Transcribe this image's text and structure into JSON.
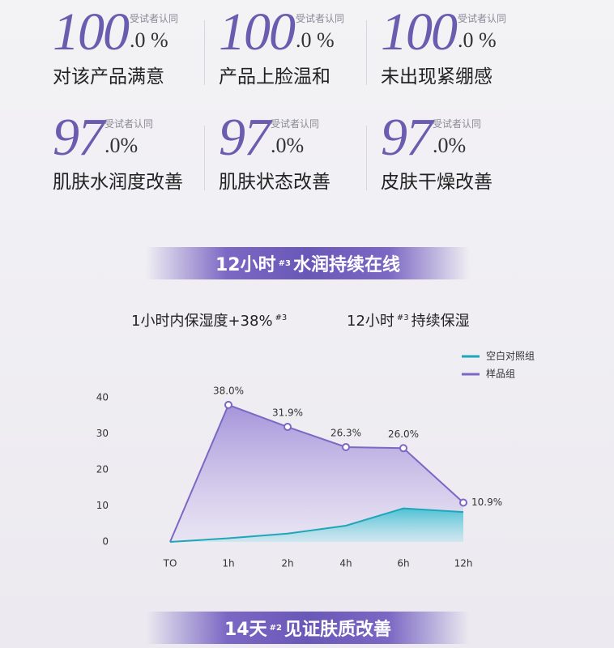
{
  "stats": [
    {
      "number": "100",
      "decimal": ".0 %",
      "note": "受试者认同",
      "label": "对该产品满意"
    },
    {
      "number": "100",
      "decimal": ".0 %",
      "note": "受试者认同",
      "label": "产品上脸温和"
    },
    {
      "number": "100",
      "decimal": ".0 %",
      "note": "受试者认同",
      "label": "未出现紧绷感"
    },
    {
      "number": "97",
      "decimal": ".0%",
      "note": "受试者认同",
      "label": "肌肤水润度改善"
    },
    {
      "number": "97",
      "decimal": ".0%",
      "note": "受试者认同",
      "label": "肌肤状态改善"
    },
    {
      "number": "97",
      "decimal": ".0%",
      "note": "受试者认同",
      "label": "皮肤干燥改善"
    }
  ],
  "banner_top": {
    "before": "12小时",
    "sup": "#3",
    "after": "水润持续在线"
  },
  "subheads": [
    {
      "before": "1小时内保湿度+38%",
      "sup": "#3",
      "after": ""
    },
    {
      "before": "12小时",
      "sup": "#3",
      "after": "持续保湿"
    }
  ],
  "chart_data": {
    "type": "area",
    "categories": [
      "TO",
      "1h",
      "2h",
      "4h",
      "6h",
      "12h"
    ],
    "series": [
      {
        "name": "空白对照组",
        "color": "#1fa6b8",
        "values": [
          0,
          1,
          2.3,
          4.5,
          9.3,
          8.3
        ]
      },
      {
        "name": "样品组",
        "color": "#7b68c4",
        "values": [
          0,
          38.0,
          31.9,
          26.3,
          26.0,
          10.9
        ],
        "value_labels": [
          null,
          "38.0%",
          "31.9%",
          "26.3%",
          "26.0%",
          "10.9%"
        ]
      }
    ],
    "ylim": [
      0,
      40
    ],
    "yticks": [
      0,
      10,
      20,
      30,
      40
    ]
  },
  "banner_bottom": {
    "before": "14天",
    "sup": "#2",
    "after": "见证肤质改善"
  }
}
